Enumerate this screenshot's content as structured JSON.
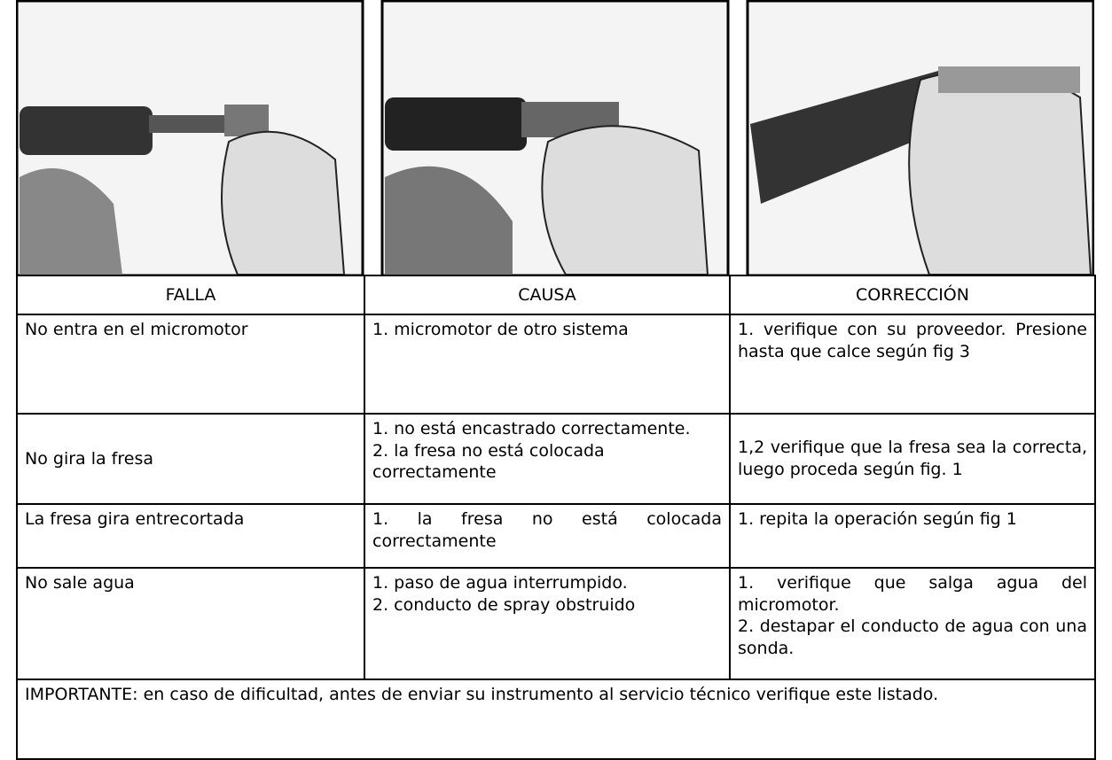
{
  "table": {
    "headers": [
      "FALLA",
      "CAUSA",
      "CORRECCIÓN"
    ],
    "rows": [
      {
        "falla": "No entra en el micromotor",
        "causa": [
          "1. micromotor de otro sistema"
        ],
        "correccion": [
          "1. verifique con su proveedor. Presione hasta que calce según fig 3"
        ]
      },
      {
        "falla": "No gira la fresa",
        "causa": [
          "1. no está encastrado correctamente.",
          "2. la fresa no está colocada correctamente"
        ],
        "correccion": [
          "1,2 verifique que la fresa sea la correcta, luego proceda según fig. 1"
        ]
      },
      {
        "falla": "La fresa gira entrecortada",
        "causa": [
          "1. la fresa no está colocada correctamente"
        ],
        "correccion": [
          "1. repita la operación según fig 1"
        ]
      },
      {
        "falla": "No sale agua",
        "causa": [
          "1. paso de agua interrumpido.",
          "2. conducto de spray obstruido"
        ],
        "correccion": [
          "1. verifique que salga agua del micromotor.",
          "2. destapar el conducto de agua con una sonda."
        ]
      }
    ],
    "note": "IMPORTANTE: en caso de dificultad, antes de enviar su instrumento al servicio técnico verifique este listado."
  }
}
